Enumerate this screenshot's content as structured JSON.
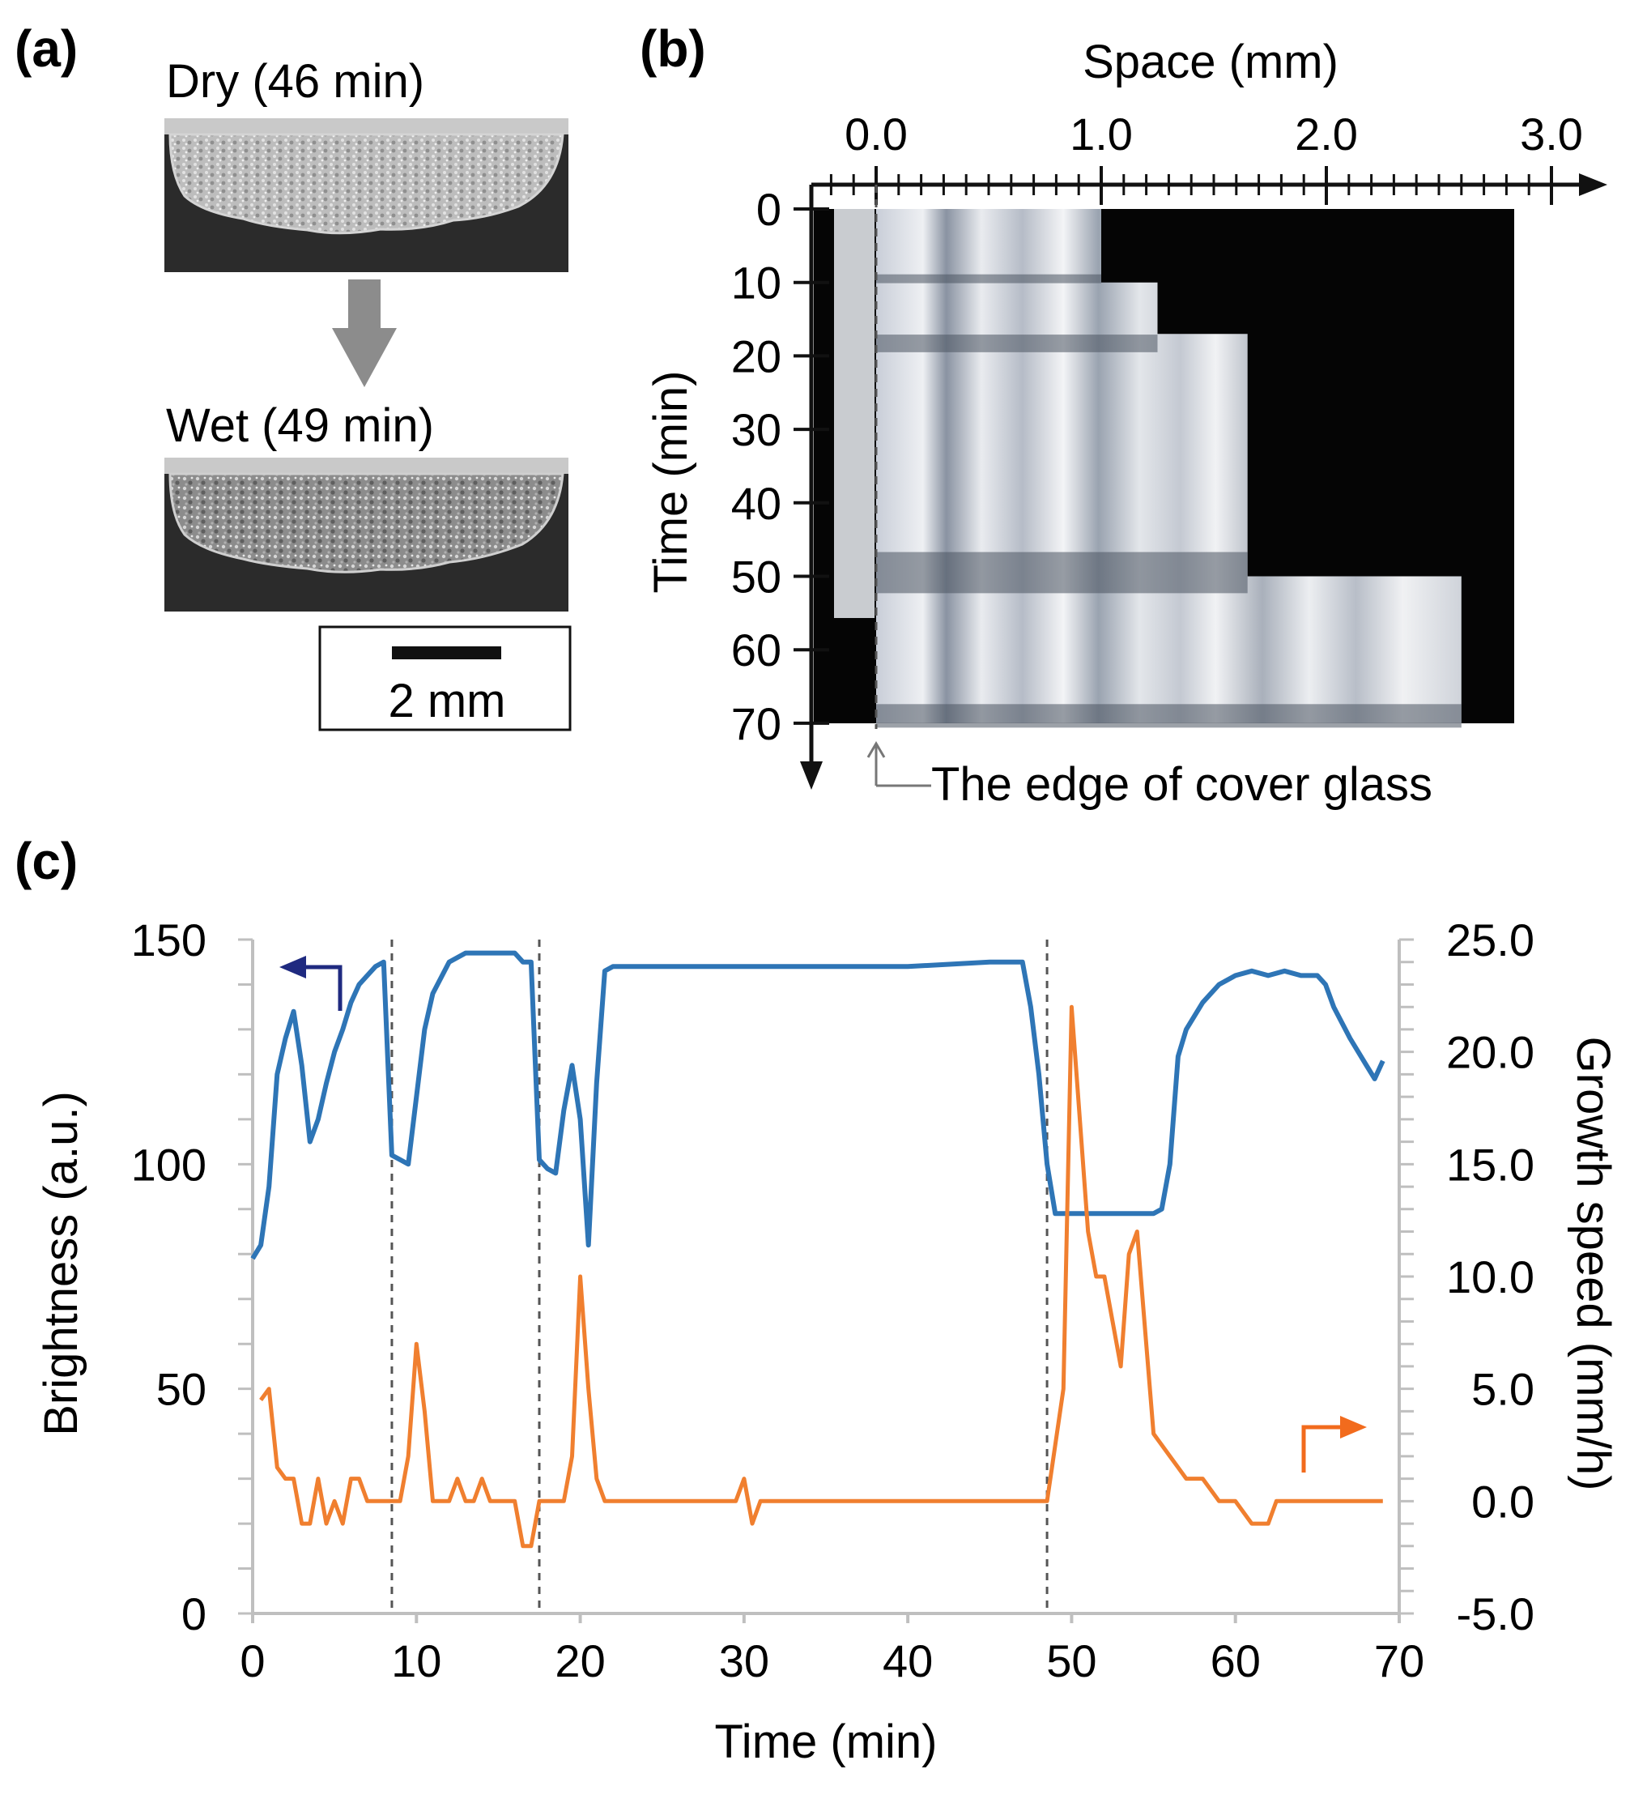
{
  "panel_a": {
    "letter": "(a)",
    "dry_label": "Dry (46 min)",
    "wet_label": "Wet (49 min)",
    "scale_label": "2 mm"
  },
  "panel_b": {
    "letter": "(b)",
    "x_title": "Space (mm)",
    "x_ticks": [
      "0.0",
      "1.0",
      "2.0",
      "3.0"
    ],
    "y_title": "Time (min)",
    "y_ticks": [
      "0",
      "10",
      "20",
      "30",
      "40",
      "50",
      "60",
      "70"
    ],
    "annotation": "The edge of cover glass",
    "growth_front": {
      "time_min": [
        0,
        10,
        10,
        17,
        17,
        50,
        50,
        56,
        56,
        70
      ],
      "space_mm": [
        1.0,
        1.0,
        1.25,
        1.25,
        1.65,
        1.65,
        2.6,
        2.6,
        2.6,
        2.6
      ]
    }
  },
  "panel_c": {
    "letter": "(c)",
    "xlabel": "Time (min)",
    "ylabel_left": "Brightness (a.u.)",
    "ylabel_right": "Growth speed (mm/h)",
    "x_ticks": [
      "0",
      "10",
      "20",
      "30",
      "40",
      "50",
      "60",
      "70"
    ],
    "y_left_ticks": [
      "0",
      "50",
      "100",
      "150"
    ],
    "y_right_ticks": [
      "-5.0",
      "0.0",
      "5.0",
      "10.0",
      "15.0",
      "20.0",
      "25.0"
    ]
  },
  "chart_data": {
    "type": "line",
    "xlabel": "Time (min)",
    "xlim": [
      0,
      70
    ],
    "y_left": {
      "label": "Brightness (a.u.)",
      "lim": [
        0,
        150
      ]
    },
    "y_right": {
      "label": "Growth speed (mm/h)",
      "lim": [
        -5,
        25
      ]
    },
    "vlines": [
      8.5,
      17.5,
      48.5
    ],
    "series": [
      {
        "axis": "left",
        "color": "#2e75b6",
        "x": [
          0,
          0.5,
          1,
          1.5,
          2,
          2.5,
          3,
          3.5,
          4,
          4.5,
          5,
          5.5,
          6,
          6.5,
          7,
          7.5,
          8,
          8.5,
          9,
          9.5,
          10,
          10.5,
          11,
          12,
          13,
          14,
          15,
          16,
          16.5,
          17,
          17.5,
          18,
          18.5,
          19,
          19.5,
          20,
          20.5,
          21,
          21.5,
          22,
          25,
          30,
          35,
          40,
          45,
          47,
          47.5,
          48,
          48.5,
          49,
          50,
          52,
          55,
          55.5,
          56,
          56.5,
          57,
          58,
          59,
          60,
          61,
          62,
          63,
          64,
          65,
          65.5,
          66,
          67,
          68,
          68.5,
          69
        ],
        "y": [
          79,
          82,
          95,
          120,
          128,
          134,
          122,
          105,
          110,
          118,
          125,
          130,
          136,
          140,
          142,
          144,
          145,
          102,
          101,
          100,
          115,
          130,
          138,
          145,
          147,
          147,
          147,
          147,
          145,
          145,
          101,
          99,
          98,
          112,
          122,
          110,
          82,
          118,
          143,
          144,
          144,
          144,
          144,
          144,
          145,
          145,
          135,
          120,
          100,
          89,
          89,
          89,
          89,
          90,
          100,
          124,
          130,
          136,
          140,
          142,
          143,
          142,
          143,
          142,
          142,
          140,
          135,
          128,
          122,
          119,
          123
        ]
      },
      {
        "axis": "right",
        "color": "#f07f2f",
        "x": [
          0.5,
          1,
          1.5,
          2,
          2.5,
          3,
          3.5,
          4,
          4.5,
          5,
          5.5,
          6,
          6.5,
          7,
          8.5,
          9,
          9.5,
          10,
          10.5,
          11,
          11.5,
          12,
          12.5,
          13,
          13.5,
          14,
          14.5,
          15,
          16,
          16.5,
          17,
          17.5,
          19,
          19.5,
          20,
          20.5,
          21,
          21.5,
          22,
          29.5,
          30,
          30.5,
          31,
          31.5,
          48.5,
          49.5,
          50,
          51,
          51.5,
          52,
          52.5,
          53,
          53.5,
          54,
          55,
          56,
          56.5,
          57,
          58,
          59,
          60,
          61,
          61.5,
          62,
          62.5,
          63,
          69
        ],
        "y": [
          4.5,
          5,
          1.5,
          1,
          1,
          -1,
          -1,
          1,
          -1,
          0,
          -1,
          1,
          1,
          0,
          0,
          0,
          2,
          7,
          4,
          0,
          0,
          0,
          1,
          0,
          0,
          1,
          0,
          0,
          0,
          -2,
          -2,
          0,
          0,
          2,
          10,
          5,
          1,
          0,
          0,
          0,
          1,
          -1,
          0,
          0,
          0,
          5,
          22,
          12,
          10,
          10,
          8,
          6,
          11,
          12,
          3,
          2,
          1.5,
          1,
          1,
          0,
          0,
          -1,
          -1,
          -1,
          0,
          0,
          0
        ]
      }
    ]
  }
}
